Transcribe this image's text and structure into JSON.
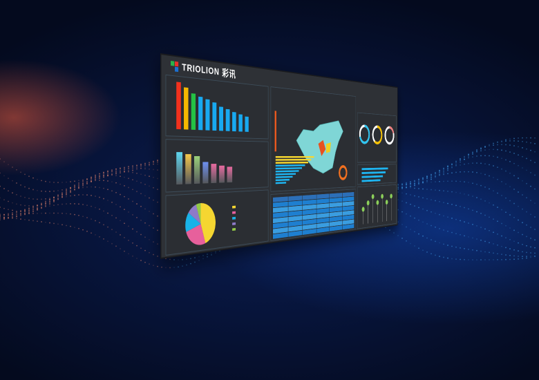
{
  "brand": {
    "logo_text": "TRIOLION",
    "logo_cn": "彩讯"
  },
  "colors": {
    "accent": "#1eb4f0",
    "panel": "#2b2e33",
    "map": "#7fd6d6"
  },
  "ranking_bars": {
    "values": [
      100,
      90,
      78,
      73,
      68,
      63,
      55,
      50,
      45,
      40,
      36
    ],
    "colors": [
      "#f2311d",
      "#f5b800",
      "#24c244",
      "#18a9f0",
      "#18a9f0",
      "#18a9f0",
      "#18a9f0",
      "#18a9f0",
      "#18a9f0",
      "#18a9f0",
      "#18a9f0"
    ]
  },
  "trophy_bars": {
    "values": [
      80,
      75,
      70,
      55,
      50,
      45,
      42
    ]
  },
  "pie": {
    "values": [
      45,
      25,
      15,
      10,
      5
    ],
    "colors": [
      "#f5d631",
      "#e7609c",
      "#19b2e8",
      "#8e7ac8",
      "#93c946"
    ]
  },
  "donuts": [
    {
      "value": 70,
      "color": "#2ec4f0"
    },
    {
      "value": 60,
      "color": "#f5c000"
    },
    {
      "value": 20,
      "color": "#f08080"
    }
  ]
}
